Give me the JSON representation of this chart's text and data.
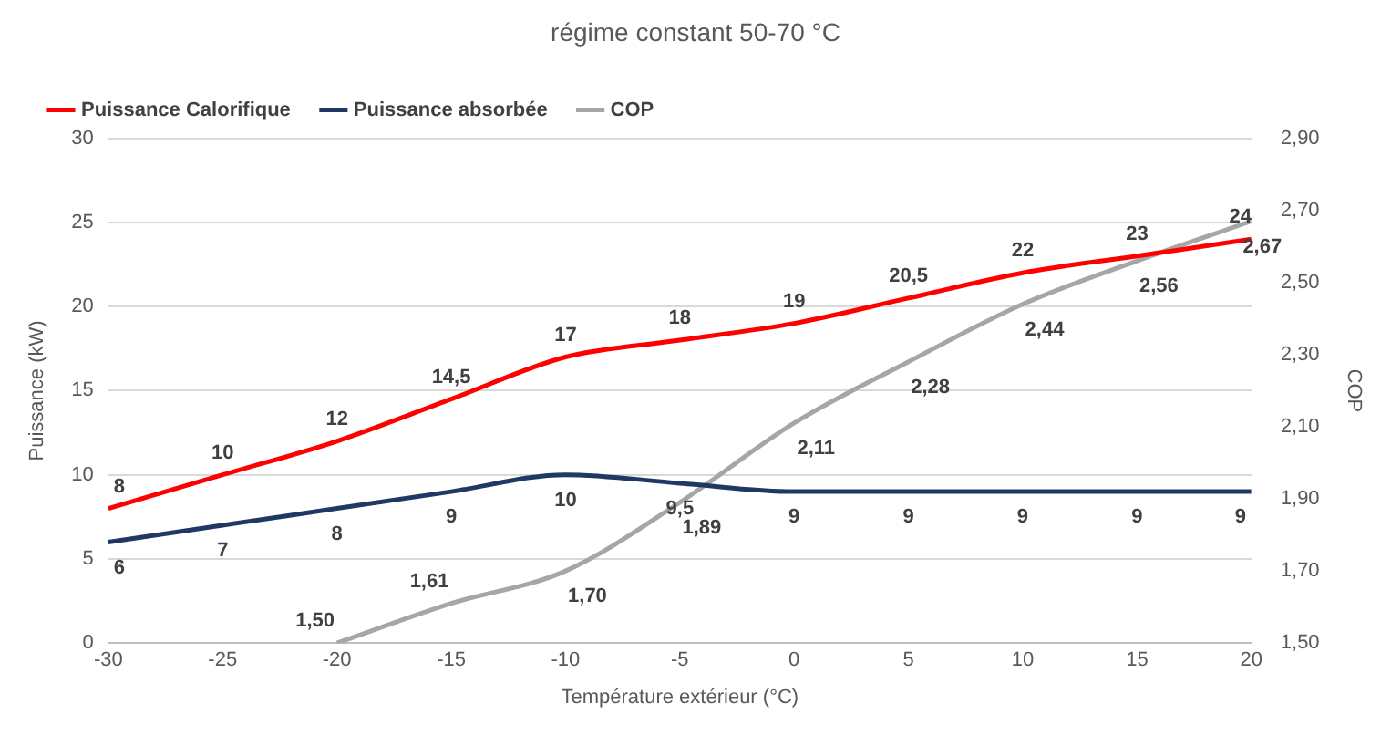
{
  "chart_data": {
    "type": "line",
    "title": "régime constant 50-70 °C",
    "xlabel": "Température extérieur (°C)",
    "ylabel": "Puissance (kW)",
    "y2label": "COP",
    "x": [
      -30,
      -25,
      -20,
      -15,
      -10,
      -5,
      0,
      5,
      10,
      15,
      20
    ],
    "xlim": [
      -30,
      20
    ],
    "xticks": [
      -30,
      -25,
      -20,
      -15,
      -10,
      -5,
      0,
      5,
      10,
      15,
      20
    ],
    "ylim": [
      0,
      30
    ],
    "yticks": [
      0,
      5,
      10,
      15,
      20,
      25,
      30
    ],
    "y2lim": [
      1.5,
      2.9
    ],
    "y2ticks": [
      {
        "value": 1.5,
        "label": "1,50"
      },
      {
        "value": 1.7,
        "label": "1,70"
      },
      {
        "value": 1.9,
        "label": "1,90"
      },
      {
        "value": 2.1,
        "label": "2,10"
      },
      {
        "value": 2.3,
        "label": "2,30"
      },
      {
        "value": 2.5,
        "label": "2,50"
      },
      {
        "value": 2.7,
        "label": "2,70"
      },
      {
        "value": 2.9,
        "label": "2,90"
      }
    ],
    "grid": "y",
    "legend": "top left",
    "marker": "none",
    "line_style": "solid",
    "series": [
      {
        "name": "Puissance Calorifique",
        "color": "#ff0000",
        "values": [
          8,
          10,
          12,
          14.5,
          17,
          18,
          19,
          20.5,
          22,
          23,
          24
        ],
        "value_labels": [
          "8",
          "10",
          "12",
          "14,5",
          "17",
          "18",
          "19",
          "20,5",
          "22",
          "23",
          "24"
        ]
      },
      {
        "name": "Puissance absorbée",
        "color": "#1f3864",
        "values": [
          6,
          7,
          8,
          9,
          10,
          9.5,
          9,
          9,
          9,
          9,
          9
        ],
        "value_labels": [
          "6",
          "7",
          "8",
          "9",
          "10",
          "9,5",
          "9",
          "9",
          "9",
          "9",
          "9"
        ]
      },
      {
        "name": "COP",
        "color": "#a6a6a6",
        "axis": "y2",
        "values": [
          null,
          null,
          1.5,
          1.61,
          1.7,
          1.89,
          2.11,
          2.28,
          2.44,
          2.56,
          2.67
        ],
        "value_labels": [
          null,
          null,
          "1,50",
          "1,61",
          "1,70",
          "1,89",
          "2,11",
          "2,28",
          "2,44",
          "2,56",
          "2,67"
        ]
      }
    ]
  }
}
